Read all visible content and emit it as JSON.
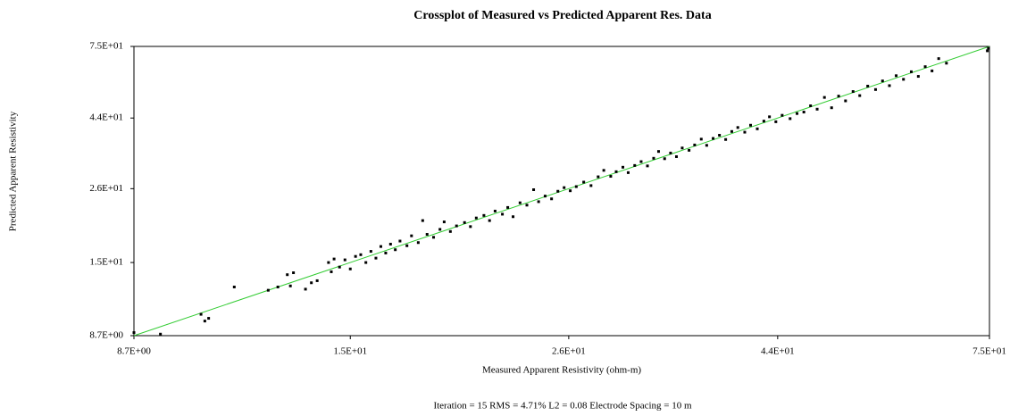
{
  "chart_data": {
    "type": "scatter",
    "title": "Crossplot of Measured vs Predicted Apparent Res. Data",
    "x_label": "Measured Apparent Resistivity (ohm-m)",
    "y_label": "Predicted Apparent Resistivity",
    "annotation": "Iteration = 15    RMS = 4.71%    L2 = 0.08    Electrode Spacing = 10 m",
    "log_x": true,
    "log_y": true,
    "xlim": [
      8.7,
      75
    ],
    "ylim": [
      8.7,
      75
    ],
    "xticks": [
      {
        "value": 8.7,
        "label": "8.7E+00"
      },
      {
        "value": 15,
        "label": "1.5E+01"
      },
      {
        "value": 26,
        "label": "2.6E+01"
      },
      {
        "value": 44,
        "label": "4.4E+01"
      },
      {
        "value": 75,
        "label": "7.5E+01"
      }
    ],
    "yticks": [
      {
        "value": 8.7,
        "label": "8.7E+00"
      },
      {
        "value": 15,
        "label": "1.5E+01"
      },
      {
        "value": 26,
        "label": "2.6E+01"
      },
      {
        "value": 44,
        "label": "4.4E+01"
      },
      {
        "value": 75,
        "label": "7.5E+01"
      }
    ],
    "line": {
      "x": [
        8.7,
        75
      ],
      "y": [
        8.7,
        75
      ],
      "color": "#33cc33"
    },
    "points": {
      "color": "#000000",
      "x": [
        8.7,
        9.3,
        10.3,
        10.4,
        10.5,
        11.2,
        12.2,
        12.5,
        12.8,
        12.9,
        13.0,
        13.4,
        13.6,
        13.8,
        14.2,
        14.3,
        14.4,
        14.6,
        14.8,
        15.0,
        15.2,
        15.4,
        15.6,
        15.8,
        16.0,
        16.2,
        16.4,
        16.6,
        16.8,
        17.0,
        17.3,
        17.5,
        17.8,
        18.0,
        18.2,
        18.5,
        18.8,
        19.0,
        19.3,
        19.6,
        20.0,
        20.3,
        20.6,
        21.0,
        21.3,
        21.6,
        22.0,
        22.3,
        22.6,
        23.0,
        23.4,
        23.8,
        24.1,
        24.5,
        24.9,
        25.3,
        25.7,
        26.1,
        26.5,
        27.0,
        27.5,
        28.0,
        28.4,
        28.9,
        29.3,
        29.8,
        30.2,
        30.7,
        31.2,
        31.7,
        32.2,
        32.6,
        33.1,
        33.6,
        34.1,
        34.6,
        35.2,
        35.7,
        36.3,
        36.8,
        37.4,
        38.0,
        38.6,
        39.2,
        39.8,
        40.5,
        41.1,
        41.8,
        42.5,
        43.1,
        43.8,
        44.5,
        45.4,
        46.2,
        47.0,
        47.8,
        48.6,
        49.5,
        50.4,
        51.3,
        52.2,
        53.2,
        54.1,
        55.2,
        56.3,
        57.3,
        58.3,
        59.3,
        60.4,
        61.6,
        62.7,
        63.8,
        64.9,
        66.0,
        67.3,
        74.6,
        74.8
      ],
      "y": [
        8.9,
        8.8,
        10.2,
        9.7,
        9.9,
        12.5,
        12.2,
        12.5,
        13.7,
        12.6,
        13.9,
        12.3,
        12.9,
        13.1,
        15.0,
        14.0,
        15.4,
        14.5,
        15.3,
        14.3,
        15.7,
        15.9,
        15.0,
        16.3,
        15.5,
        16.9,
        16.1,
        17.2,
        16.5,
        17.6,
        17.0,
        18.3,
        17.4,
        20.5,
        18.5,
        18.1,
        19.2,
        20.3,
        18.9,
        19.7,
        20.2,
        19.6,
        20.9,
        21.3,
        20.5,
        22.0,
        21.5,
        22.6,
        21.1,
        23.4,
        23.0,
        25.8,
        23.6,
        24.6,
        24.1,
        25.5,
        26.2,
        25.6,
        26.4,
        27.3,
        26.6,
        28.4,
        29.8,
        28.5,
        29.5,
        30.5,
        29.3,
        30.9,
        31.8,
        30.8,
        32.6,
        34.3,
        32.5,
        33.9,
        33.0,
        35.2,
        34.6,
        36.0,
        37.6,
        35.9,
        37.8,
        38.7,
        37.5,
        39.8,
        41.0,
        39.6,
        41.7,
        40.6,
        43.0,
        44.4,
        42.8,
        44.9,
        43.8,
        45.5,
        46.0,
        48.2,
        47.0,
        51.3,
        47.5,
        51.8,
        50.0,
        53.6,
        52.0,
        55.8,
        54.4,
        58.0,
        56.0,
        60.3,
        58.7,
        62.1,
        60.0,
        64.5,
        62.5,
        68.5,
        66.2,
        72.6,
        74.0
      ]
    }
  }
}
